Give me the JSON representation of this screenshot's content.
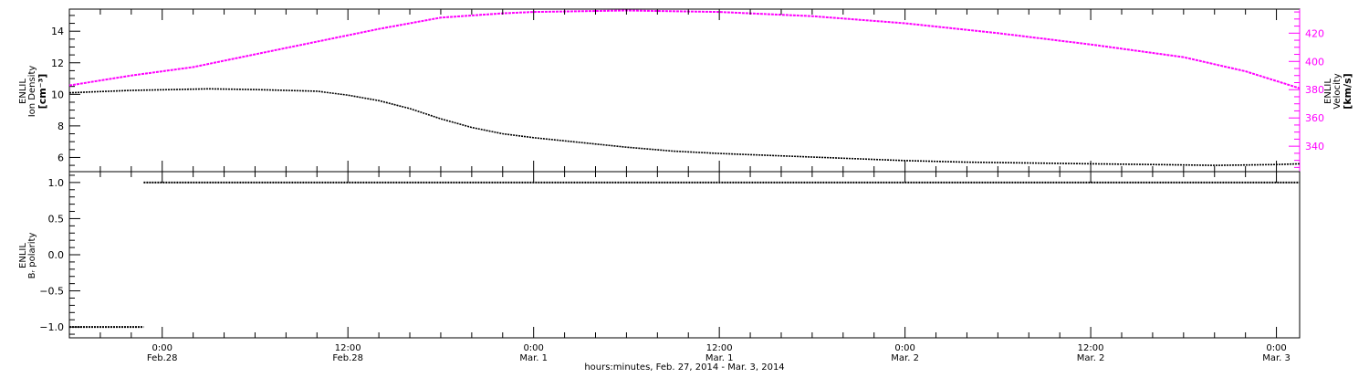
{
  "chart_data": [
    {
      "type": "line",
      "panel": "top",
      "ylabel_left": [
        "ENLIL",
        "Ion Density",
        "[cm⁻³]"
      ],
      "ylabel_right": [
        "ENLIL",
        "Velocity",
        "[km/s]"
      ],
      "y_left": {
        "ylim": [
          5.1,
          15.4
        ],
        "ticks": [
          6,
          8,
          10,
          12,
          14
        ],
        "tick_labels": [
          "6",
          "8",
          "10",
          "12",
          "14"
        ]
      },
      "y_right": {
        "ylim": [
          322,
          437
        ],
        "ticks": [
          340,
          360,
          380,
          400,
          420
        ],
        "tick_labels": [
          "340",
          "360",
          "380",
          "400",
          "420"
        ]
      },
      "series": [
        {
          "axis": "left",
          "color": "#000000",
          "points": [
            [
              -6,
              10.1
            ],
            [
              -2,
              10.25
            ],
            [
              3,
              10.35
            ],
            [
              6,
              10.3
            ],
            [
              10,
              10.2
            ],
            [
              12,
              9.95
            ],
            [
              14,
              9.6
            ],
            [
              16,
              9.1
            ],
            [
              18,
              8.45
            ],
            [
              20,
              7.9
            ],
            [
              22,
              7.5
            ],
            [
              24,
              7.25
            ],
            [
              27,
              6.95
            ],
            [
              30,
              6.65
            ],
            [
              33,
              6.4
            ],
            [
              36,
              6.25
            ],
            [
              40,
              6.1
            ],
            [
              44,
              5.95
            ],
            [
              48,
              5.8
            ],
            [
              52,
              5.7
            ],
            [
              56,
              5.65
            ],
            [
              60,
              5.6
            ],
            [
              64,
              5.55
            ],
            [
              68,
              5.5
            ],
            [
              70,
              5.52
            ],
            [
              72,
              5.55
            ],
            [
              73.5,
              5.6
            ]
          ]
        },
        {
          "axis": "right",
          "color": "#ff00ff",
          "points": [
            [
              -6,
              383
            ],
            [
              -2,
              390
            ],
            [
              2,
              396
            ],
            [
              6,
              405
            ],
            [
              10,
              414
            ],
            [
              14,
              423
            ],
            [
              18,
              431
            ],
            [
              22,
              434
            ],
            [
              24,
              435
            ],
            [
              30,
              436
            ],
            [
              36,
              435
            ],
            [
              42,
              432
            ],
            [
              48,
              427
            ],
            [
              54,
              420
            ],
            [
              60,
              412
            ],
            [
              66,
              403
            ],
            [
              70,
              393
            ],
            [
              73.5,
              381
            ]
          ]
        }
      ]
    },
    {
      "type": "scatter",
      "panel": "bottom",
      "ylabel": [
        "ENLIL",
        "Bᵣ polarity"
      ],
      "ylim": [
        -1.15,
        1.15
      ],
      "y_ticks": [
        -1.0,
        -0.5,
        0.0,
        0.5,
        1.0
      ],
      "y_tick_labels": [
        "−1.0",
        "−0.5",
        "0.0",
        "0.5",
        "1.0"
      ],
      "series": [
        {
          "color": "#000000",
          "segments": [
            {
              "x_start": -6,
              "x_end": -1.2,
              "y": -1.0
            },
            {
              "x_start": -1.2,
              "x_end": 73.5,
              "y": 1.0
            }
          ]
        }
      ]
    }
  ],
  "x_axis": {
    "description": "hours since 2014-02-28 00:00",
    "xlim": [
      -6,
      73.5
    ],
    "major_ticks": [
      0,
      12,
      24,
      36,
      48,
      60,
      72
    ],
    "major_tick_labels": [
      [
        "0:00",
        "Feb.28"
      ],
      [
        "12:00",
        "Feb.28"
      ],
      [
        "0:00",
        "Mar. 1"
      ],
      [
        "12:00",
        "Mar. 1"
      ],
      [
        "0:00",
        "Mar. 2"
      ],
      [
        "12:00",
        "Mar. 2"
      ],
      [
        "0:00",
        "Mar. 3"
      ]
    ],
    "xlabel": "hours:minutes, Feb. 27, 2014 - Mar.  3, 2014"
  }
}
